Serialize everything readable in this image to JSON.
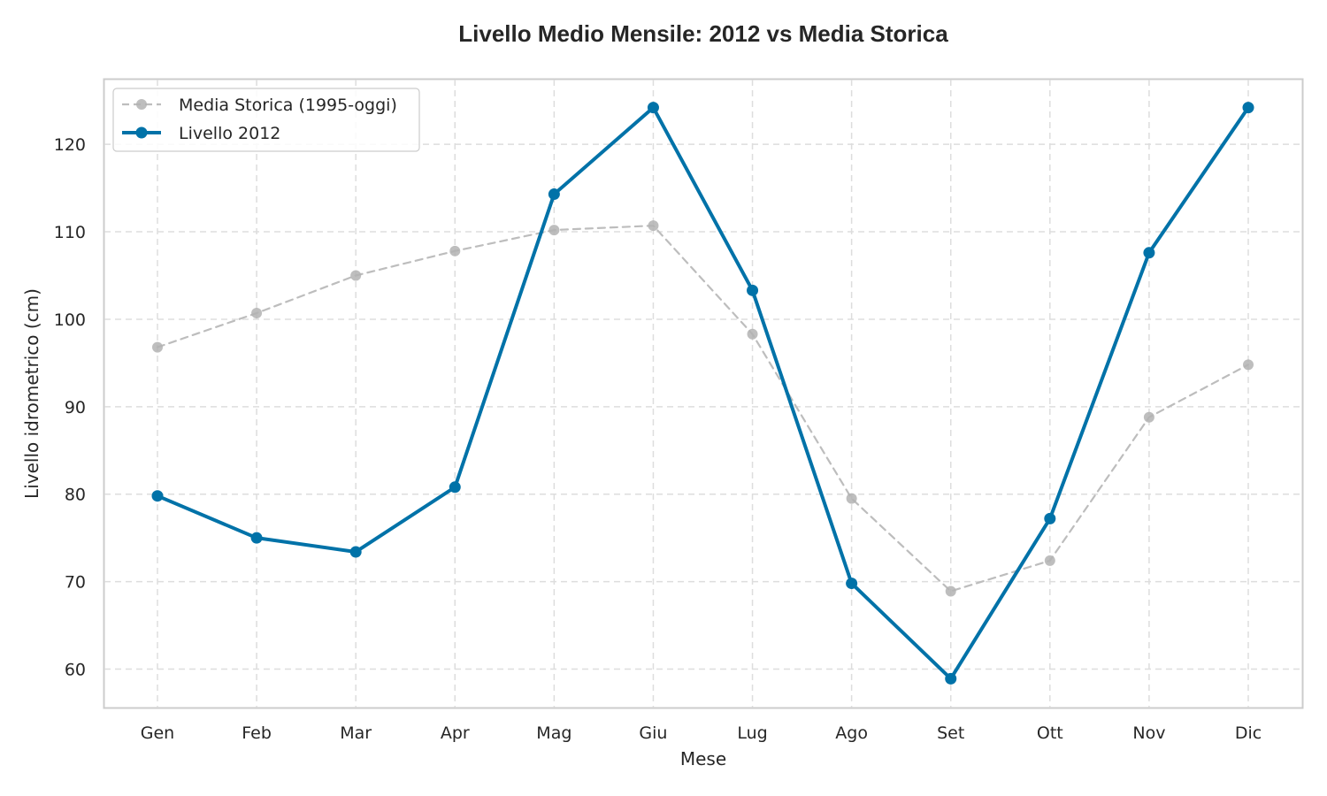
{
  "chart_data": {
    "type": "line",
    "title": "Livello Medio Mensile: 2012 vs Media Storica",
    "xlabel": "Mese",
    "ylabel": "Livello idrometrico (cm)",
    "categories": [
      "Gen",
      "Feb",
      "Mar",
      "Apr",
      "Mag",
      "Giu",
      "Lug",
      "Ago",
      "Set",
      "Ott",
      "Nov",
      "Dic"
    ],
    "ylim": [
      55.6,
      127.4
    ],
    "yticks": [
      60,
      70,
      80,
      90,
      100,
      110,
      120
    ],
    "grid": true,
    "legend_position": "top-left",
    "series": [
      {
        "name": "Media Storica (1995-oggi)",
        "color": "#b3b3b3",
        "style": "dashed",
        "values": [
          96.8,
          100.7,
          105.0,
          107.8,
          110.2,
          110.7,
          98.3,
          79.5,
          68.9,
          72.4,
          88.8,
          94.8
        ]
      },
      {
        "name": "Livello 2012",
        "color": "#0072a8",
        "style": "solid",
        "values": [
          79.8,
          75.0,
          73.4,
          80.8,
          114.3,
          124.2,
          103.3,
          69.8,
          58.9,
          77.2,
          107.6,
          124.2
        ]
      }
    ]
  }
}
